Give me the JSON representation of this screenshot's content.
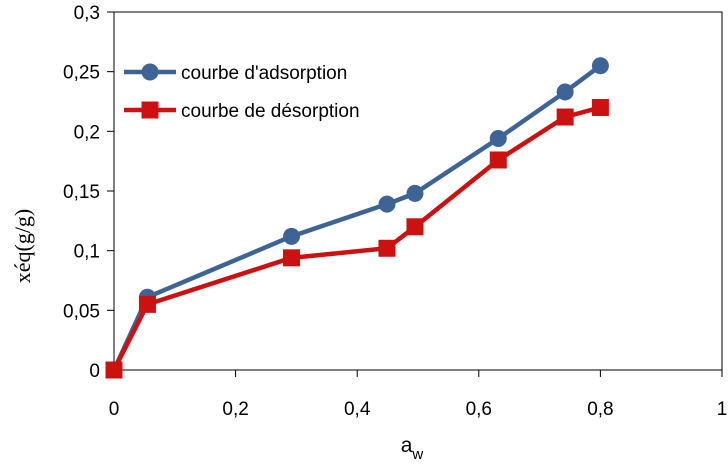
{
  "chart_data": {
    "type": "line",
    "xlabel": "a",
    "xlabel_subscript": "w",
    "ylabel": "xéq(g/g)",
    "xlim": [
      0,
      1
    ],
    "ylim": [
      0,
      0.3
    ],
    "x_ticks": [
      {
        "value": 0,
        "label": "0"
      },
      {
        "value": 0.2,
        "label": "0,2"
      },
      {
        "value": 0.4,
        "label": "0,4"
      },
      {
        "value": 0.6,
        "label": "0,6"
      },
      {
        "value": 0.8,
        "label": "0,8"
      },
      {
        "value": 1,
        "label": "1"
      }
    ],
    "y_ticks": [
      {
        "value": 0,
        "label": "0"
      },
      {
        "value": 0.05,
        "label": "0,05"
      },
      {
        "value": 0.1,
        "label": "0,1"
      },
      {
        "value": 0.15,
        "label": "0,15"
      },
      {
        "value": 0.2,
        "label": "0,2"
      },
      {
        "value": 0.25,
        "label": "0,25"
      },
      {
        "value": 0.3,
        "label": "0,3"
      }
    ],
    "grid": false,
    "legend_position": "top-left",
    "series": [
      {
        "name": "courbe d'adsorption",
        "color": "#3E6496",
        "marker": "circle",
        "x": [
          0,
          0.055,
          0.292,
          0.449,
          0.495,
          0.632,
          0.742,
          0.8
        ],
        "y": [
          0,
          0.061,
          0.112,
          0.139,
          0.148,
          0.194,
          0.233,
          0.255
        ]
      },
      {
        "name": "courbe de désorption",
        "color": "#CC1111",
        "marker": "square",
        "x": [
          0,
          0.055,
          0.292,
          0.449,
          0.495,
          0.632,
          0.742,
          0.8
        ],
        "y": [
          0,
          0.055,
          0.094,
          0.102,
          0.12,
          0.176,
          0.212,
          0.22
        ]
      }
    ]
  }
}
